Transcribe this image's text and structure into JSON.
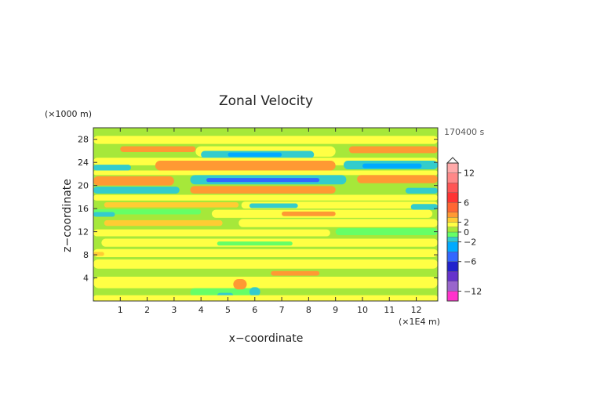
{
  "chart_data": {
    "type": "heatmap",
    "title": "Zonal Velocity",
    "xlabel": "x−coordinate",
    "ylabel": "z−coordinate",
    "x_unit": "(×1E4 m)",
    "y_unit": "(×1000 m)",
    "time_label": "170400 s",
    "xlim": [
      0.0,
      12.8
    ],
    "ylim": [
      0,
      30
    ],
    "x_ticks": [
      1,
      2,
      3,
      4,
      5,
      6,
      7,
      8,
      9,
      10,
      11,
      12
    ],
    "y_ticks": [
      4,
      8,
      12,
      16,
      20,
      24,
      28
    ],
    "grid": false,
    "colorbar": {
      "placement": "right",
      "range": [
        -14,
        14
      ],
      "tick_values": [
        12,
        6,
        2,
        0,
        -2,
        -6,
        -12
      ],
      "tick_labels": [
        "12",
        "6",
        "2",
        "0",
        "−2",
        "−6",
        "−12"
      ],
      "levels": [
        {
          "from": -14,
          "to": -12,
          "color": "#ff33cc"
        },
        {
          "from": -12,
          "to": -10,
          "color": "#9966cc"
        },
        {
          "from": -10,
          "to": -8,
          "color": "#6633cc"
        },
        {
          "from": -8,
          "to": -6,
          "color": "#2222cc"
        },
        {
          "from": -6,
          "to": -4,
          "color": "#3366ff"
        },
        {
          "from": -4,
          "to": -2,
          "color": "#00aaff"
        },
        {
          "from": -2,
          "to": -1,
          "color": "#33cccc"
        },
        {
          "from": -1,
          "to": 0,
          "color": "#66ff66"
        },
        {
          "from": 0,
          "to": 1,
          "color": "#a6e83a"
        },
        {
          "from": 1,
          "to": 2,
          "color": "#ffff44"
        },
        {
          "from": 2,
          "to": 3,
          "color": "#ffcc33"
        },
        {
          "from": 3,
          "to": 4,
          "color": "#ff9933"
        },
        {
          "from": 4,
          "to": 6,
          "color": "#ff6633"
        },
        {
          "from": 6,
          "to": 8,
          "color": "#ff3333"
        },
        {
          "from": 8,
          "to": 10,
          "color": "#ff5555"
        },
        {
          "from": 10,
          "to": 12,
          "color": "#ff8888"
        },
        {
          "from": 12,
          "to": 14,
          "color": "#ffaaaa"
        }
      ]
    },
    "field_colors": {
      "background": "#a6e83a",
      "weak_pos": "#ffff44",
      "pos": "#ffcc33",
      "strong_pos": "#ff9933",
      "weak_neg": "#66ff66",
      "neg": "#33cccc",
      "strong_neg": "#00aaff",
      "very_strong_neg": "#3366ff"
    },
    "bands": [
      {
        "x0": 0,
        "x1": 12.8,
        "y0": 27.2,
        "y1": 28.6,
        "c": "weak_pos"
      },
      {
        "x0": 1.0,
        "x1": 3.8,
        "y0": 25.8,
        "y1": 26.8,
        "c": "strong_pos"
      },
      {
        "x0": 9.5,
        "x1": 12.8,
        "y0": 25.6,
        "y1": 26.8,
        "c": "strong_pos"
      },
      {
        "x0": 3.8,
        "x1": 9.0,
        "y0": 25.0,
        "y1": 26.8,
        "c": "weak_pos"
      },
      {
        "x0": 4.0,
        "x1": 8.2,
        "y0": 24.7,
        "y1": 26.0,
        "c": "neg"
      },
      {
        "x0": 5.0,
        "x1": 7.0,
        "y0": 25.0,
        "y1": 25.7,
        "c": "strong_neg"
      },
      {
        "x0": 0,
        "x1": 12.8,
        "y0": 23.5,
        "y1": 24.8,
        "c": "weak_pos"
      },
      {
        "x0": 2.3,
        "x1": 9.0,
        "y0": 22.6,
        "y1": 24.3,
        "c": "strong_pos"
      },
      {
        "x0": 9.3,
        "x1": 12.8,
        "y0": 22.8,
        "y1": 24.3,
        "c": "neg"
      },
      {
        "x0": 10.0,
        "x1": 12.2,
        "y0": 23.0,
        "y1": 23.8,
        "c": "strong_neg"
      },
      {
        "x0": 0,
        "x1": 1.4,
        "y0": 22.6,
        "y1": 23.6,
        "c": "neg"
      },
      {
        "x0": 0,
        "x1": 12.8,
        "y0": 21.8,
        "y1": 22.6,
        "c": "weak_pos"
      },
      {
        "x0": 0,
        "x1": 3.0,
        "y0": 20.0,
        "y1": 21.6,
        "c": "strong_pos"
      },
      {
        "x0": 9.8,
        "x1": 12.8,
        "y0": 20.4,
        "y1": 21.8,
        "c": "strong_pos"
      },
      {
        "x0": 3.6,
        "x1": 9.4,
        "y0": 20.2,
        "y1": 21.8,
        "c": "neg"
      },
      {
        "x0": 4.2,
        "x1": 8.4,
        "y0": 20.6,
        "y1": 21.3,
        "c": "very_strong_neg"
      },
      {
        "x0": 0,
        "x1": 3.2,
        "y0": 18.6,
        "y1": 19.8,
        "c": "neg"
      },
      {
        "x0": 11.6,
        "x1": 12.8,
        "y0": 18.6,
        "y1": 19.6,
        "c": "neg"
      },
      {
        "x0": 3.6,
        "x1": 9.0,
        "y0": 18.6,
        "y1": 19.9,
        "c": "strong_pos"
      },
      {
        "x0": 0,
        "x1": 12.8,
        "y0": 17.4,
        "y1": 18.4,
        "c": "weak_pos"
      },
      {
        "x0": 0.4,
        "x1": 5.4,
        "y0": 16.2,
        "y1": 17.1,
        "c": "pos"
      },
      {
        "x0": 5.5,
        "x1": 12.8,
        "y0": 16.0,
        "y1": 17.2,
        "c": "weak_pos"
      },
      {
        "x0": 5.8,
        "x1": 7.6,
        "y0": 16.1,
        "y1": 16.9,
        "c": "neg"
      },
      {
        "x0": 11.8,
        "x1": 12.8,
        "y0": 15.8,
        "y1": 16.8,
        "c": "neg"
      },
      {
        "x0": 0,
        "x1": 4.0,
        "y0": 15.0,
        "y1": 15.9,
        "c": "weak_neg"
      },
      {
        "x0": 4.4,
        "x1": 12.6,
        "y0": 14.4,
        "y1": 15.8,
        "c": "weak_pos"
      },
      {
        "x0": 7.0,
        "x1": 9.0,
        "y0": 14.7,
        "y1": 15.5,
        "c": "strong_pos"
      },
      {
        "x0": 0,
        "x1": 0.8,
        "y0": 14.6,
        "y1": 15.4,
        "c": "neg"
      },
      {
        "x0": 0.4,
        "x1": 4.8,
        "y0": 13.0,
        "y1": 14.0,
        "c": "pos"
      },
      {
        "x0": 5.4,
        "x1": 12.8,
        "y0": 12.8,
        "y1": 14.2,
        "c": "weak_pos"
      },
      {
        "x0": 0,
        "x1": 8.8,
        "y0": 11.2,
        "y1": 12.4,
        "c": "weak_pos"
      },
      {
        "x0": 9.0,
        "x1": 12.8,
        "y0": 11.4,
        "y1": 12.6,
        "c": "weak_neg"
      },
      {
        "x0": 0.3,
        "x1": 12.8,
        "y0": 9.4,
        "y1": 10.8,
        "c": "weak_pos"
      },
      {
        "x0": 4.6,
        "x1": 7.4,
        "y0": 9.6,
        "y1": 10.3,
        "c": "weak_neg"
      },
      {
        "x0": 0,
        "x1": 12.8,
        "y0": 7.6,
        "y1": 9.0,
        "c": "weak_pos"
      },
      {
        "x0": 0,
        "x1": 0.4,
        "y0": 7.8,
        "y1": 8.5,
        "c": "pos"
      },
      {
        "x0": 0,
        "x1": 12.8,
        "y0": 5.6,
        "y1": 7.2,
        "c": "weak_pos"
      },
      {
        "x0": 6.6,
        "x1": 8.4,
        "y0": 4.4,
        "y1": 5.2,
        "c": "strong_pos"
      },
      {
        "x0": 0,
        "x1": 12.8,
        "y0": 2.2,
        "y1": 4.2,
        "c": "weak_pos"
      },
      {
        "x0": 3.6,
        "x1": 6.0,
        "y0": 0.8,
        "y1": 2.2,
        "c": "weak_neg"
      },
      {
        "x0": 5.2,
        "x1": 5.7,
        "y0": 2.0,
        "y1": 3.8,
        "c": "strong_pos"
      },
      {
        "x0": 5.8,
        "x1": 6.2,
        "y0": 0.8,
        "y1": 2.4,
        "c": "neg"
      },
      {
        "x0": 4.6,
        "x1": 5.2,
        "y0": 0.4,
        "y1": 1.4,
        "c": "neg"
      },
      {
        "x0": 0,
        "x1": 12.8,
        "y0": 0.0,
        "y1": 1.0,
        "c": "weak_pos"
      }
    ]
  }
}
